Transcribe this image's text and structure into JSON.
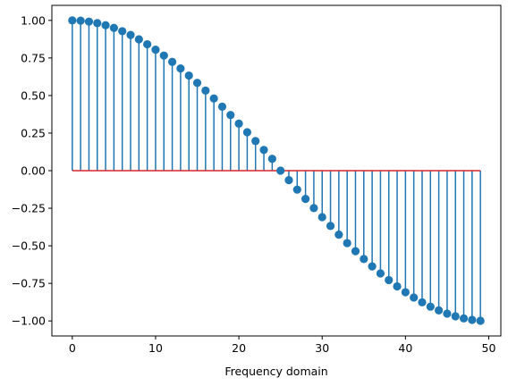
{
  "chart_data": {
    "type": "stem",
    "title": "",
    "xlabel": "Frequency domain",
    "ylabel": "",
    "xlim": [
      -2.45,
      51.45
    ],
    "ylim": [
      -1.1,
      1.1
    ],
    "xticks": [
      0,
      10,
      20,
      30,
      40,
      50
    ],
    "xtick_labels": [
      "0",
      "10",
      "20",
      "30",
      "40",
      "50"
    ],
    "yticks": [
      1.0,
      0.75,
      0.5,
      0.25,
      0.0,
      -0.25,
      -0.5,
      -0.75,
      -1.0
    ],
    "ytick_labels": [
      "1.00",
      "0.75",
      "0.50",
      "0.25",
      "0.00",
      "−0.25",
      "−0.50",
      "−0.75",
      "−1.00"
    ],
    "grid": false,
    "baseline": 0,
    "x": [
      0,
      1,
      2,
      3,
      4,
      5,
      6,
      7,
      8,
      9,
      10,
      11,
      12,
      13,
      14,
      15,
      16,
      17,
      18,
      19,
      20,
      21,
      22,
      23,
      24,
      25,
      26,
      27,
      28,
      29,
      30,
      31,
      32,
      33,
      34,
      35,
      36,
      37,
      38,
      39,
      40,
      41,
      42,
      43,
      44,
      45,
      46,
      47,
      48,
      49
    ],
    "values": [
      1.0,
      0.998,
      0.992,
      0.982,
      0.968,
      0.95,
      0.928,
      0.903,
      0.874,
      0.841,
      0.805,
      0.766,
      0.724,
      0.68,
      0.633,
      0.584,
      0.533,
      0.48,
      0.426,
      0.37,
      0.313,
      0.256,
      0.197,
      0.138,
      0.079,
      0.0,
      -0.063,
      -0.126,
      -0.188,
      -0.249,
      -0.309,
      -0.368,
      -0.426,
      -0.482,
      -0.536,
      -0.588,
      -0.637,
      -0.684,
      -0.728,
      -0.77,
      -0.809,
      -0.844,
      -0.876,
      -0.905,
      -0.93,
      -0.951,
      -0.969,
      -0.983,
      -0.993,
      -0.999
    ],
    "colors": {
      "stem": "#1f77b4",
      "marker": "#1f77b4",
      "baseline": "#d62728",
      "axes": "#000000"
    }
  }
}
